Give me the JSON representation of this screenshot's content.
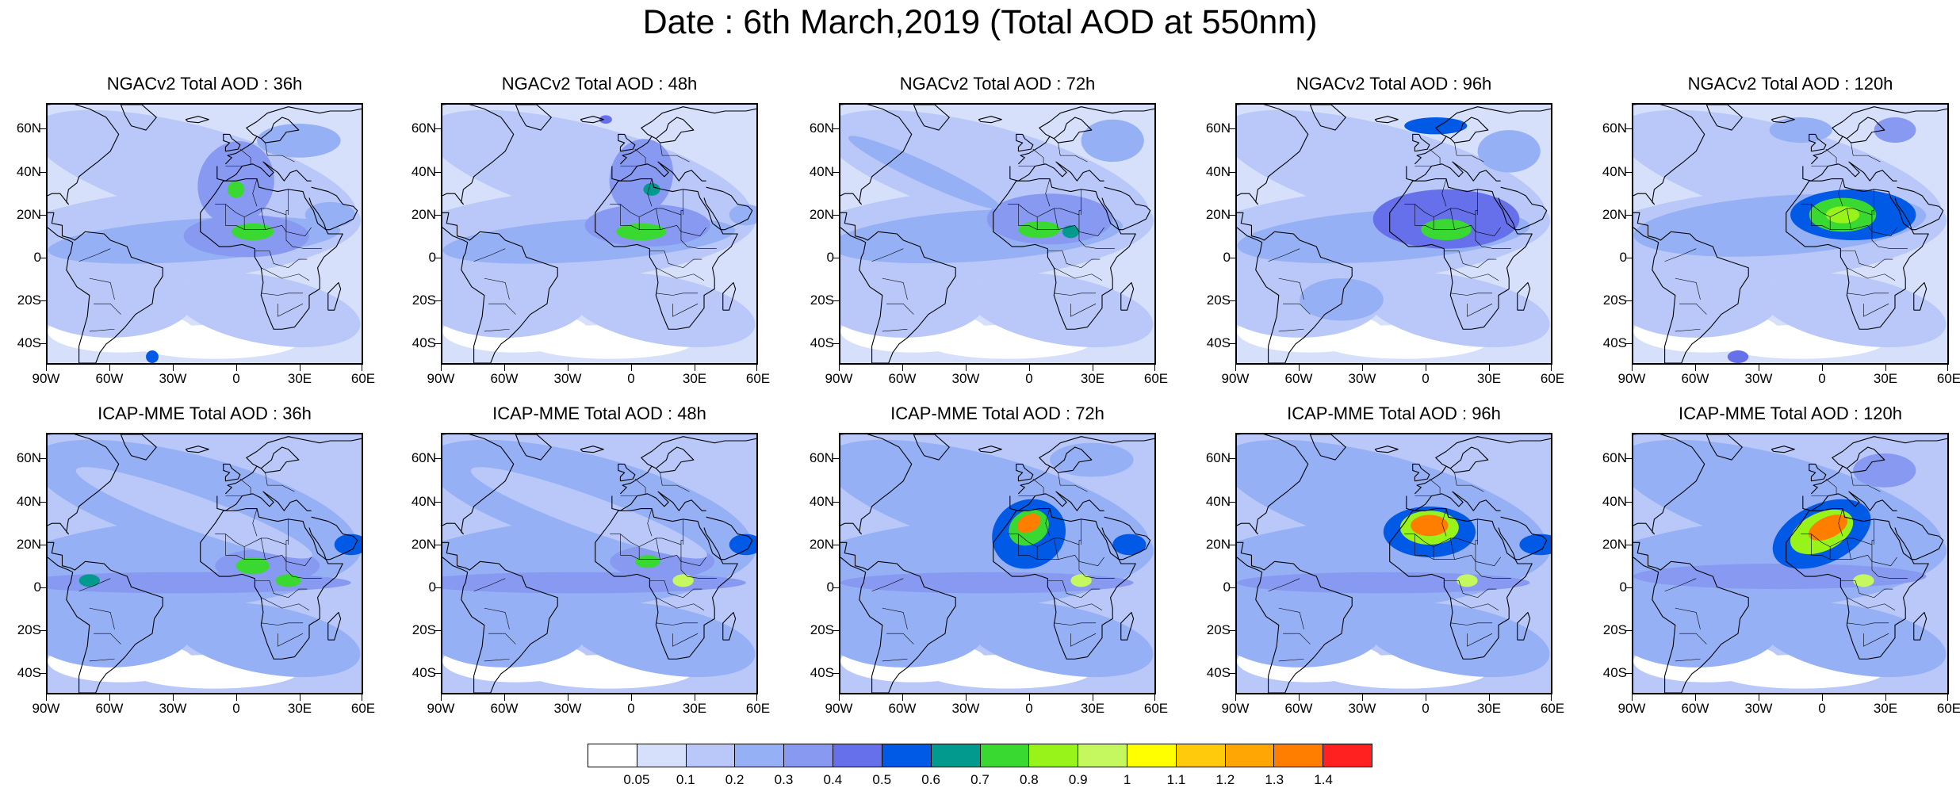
{
  "title": "Date : 6th March,2019 (Total AOD at 550nm)",
  "lat_labels": [
    "60N",
    "40N",
    "20N",
    "0",
    "20S",
    "40S"
  ],
  "lon_labels": [
    "90W",
    "60W",
    "30W",
    "0",
    "30E",
    "60E"
  ],
  "panels": [
    {
      "title": "NGACv2 Total AOD : 36h"
    },
    {
      "title": "NGACv2 Total AOD : 48h"
    },
    {
      "title": "NGACv2 Total AOD : 72h"
    },
    {
      "title": "NGACv2 Total AOD : 96h"
    },
    {
      "title": "NGACv2 Total AOD : 120h"
    },
    {
      "title": "ICAP-MME Total AOD : 36h"
    },
    {
      "title": "ICAP-MME Total AOD : 48h"
    },
    {
      "title": "ICAP-MME Total AOD : 72h"
    },
    {
      "title": "ICAP-MME Total AOD : 96h"
    },
    {
      "title": "ICAP-MME Total AOD : 120h"
    }
  ],
  "colorbar": {
    "colors": [
      "#ffffff",
      "#d7e0fb",
      "#b9c8f8",
      "#96b0f5",
      "#8799f0",
      "#6570ea",
      "#005ae6",
      "#029a8e",
      "#39d932",
      "#97f31a",
      "#c5f75e",
      "#ffff00",
      "#ffc90c",
      "#ffa504",
      "#ff7e00",
      "#ff2020"
    ],
    "labels": [
      "0.05",
      "0.1",
      "0.2",
      "0.3",
      "0.4",
      "0.5",
      "0.6",
      "0.7",
      "0.8",
      "0.9",
      "1",
      "1.1",
      "1.2",
      "1.3",
      "1.4"
    ]
  }
}
